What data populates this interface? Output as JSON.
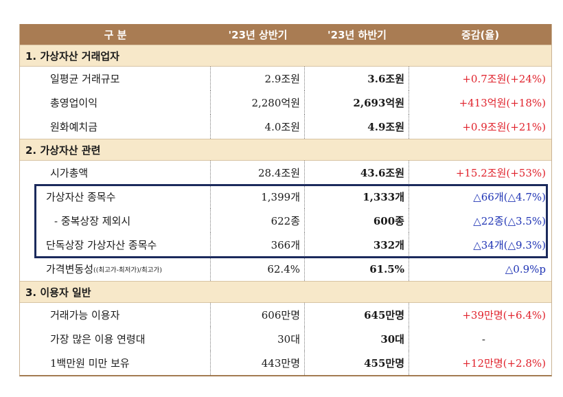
{
  "header": {
    "col1": "구  분",
    "col2": "'23년 상반기",
    "col3": "'23년 하반기",
    "col4": "증감(율)"
  },
  "sections": [
    {
      "title": "1. 가상자산 거래업자",
      "rows": [
        {
          "label": "일평균 거래규모",
          "h1": "2.9조원",
          "h2": "3.6조원",
          "change": "+0.7조원(+24%)"
        },
        {
          "label": "총영업이익",
          "h1": "2,280억원",
          "h2": "2,693억원",
          "change": "+413억원(+18%)"
        },
        {
          "label": "원화예치금",
          "h1": "4.0조원",
          "h2": "4.9조원",
          "change": "+0.9조원(+21%)"
        }
      ]
    },
    {
      "title": "2. 가상자산 관련",
      "rows": [
        {
          "label": "시가총액",
          "h1": "28.4조원",
          "h2": "43.6조원",
          "change": "+15.2조원(+53%)"
        },
        {
          "label": "가상자산 종목수",
          "h1": "1,399개",
          "h2": "1,333개",
          "change": "△66개(△4.7%)"
        },
        {
          "label": "- 중복상장 제외시",
          "h1": "622종",
          "h2": "600종",
          "change": "△22종(△3.5%)"
        },
        {
          "label": "단독상장 가상자산 종목수",
          "h1": "366개",
          "h2": "332개",
          "change": "△34개(△9.3%)"
        },
        {
          "label": "가격변동성",
          "label_note": "((최고가-최저가)/최고가)",
          "h1": "62.4%",
          "h2": "61.5%",
          "change": "△0.9%p"
        }
      ]
    },
    {
      "title": "3. 이용자 일반",
      "rows": [
        {
          "label": "거래가능 이용자",
          "h1": "606만명",
          "h2": "645만명",
          "change": "+39만명(+6.4%)"
        },
        {
          "label": "가장 많은 이용 연령대",
          "h1": "30대",
          "h2": "30대",
          "change": "-"
        },
        {
          "label": "1백만원 미만 보유",
          "h1": "443만명",
          "h2": "455만명",
          "change": "+12만명(+2.8%)"
        }
      ]
    }
  ],
  "colors": {
    "header_bg": "#a97c53",
    "section_bg": "#f7e8c9",
    "increase": "#e0212b",
    "decrease": "#1e33b4",
    "highlight_border": "#1b2a5c"
  }
}
